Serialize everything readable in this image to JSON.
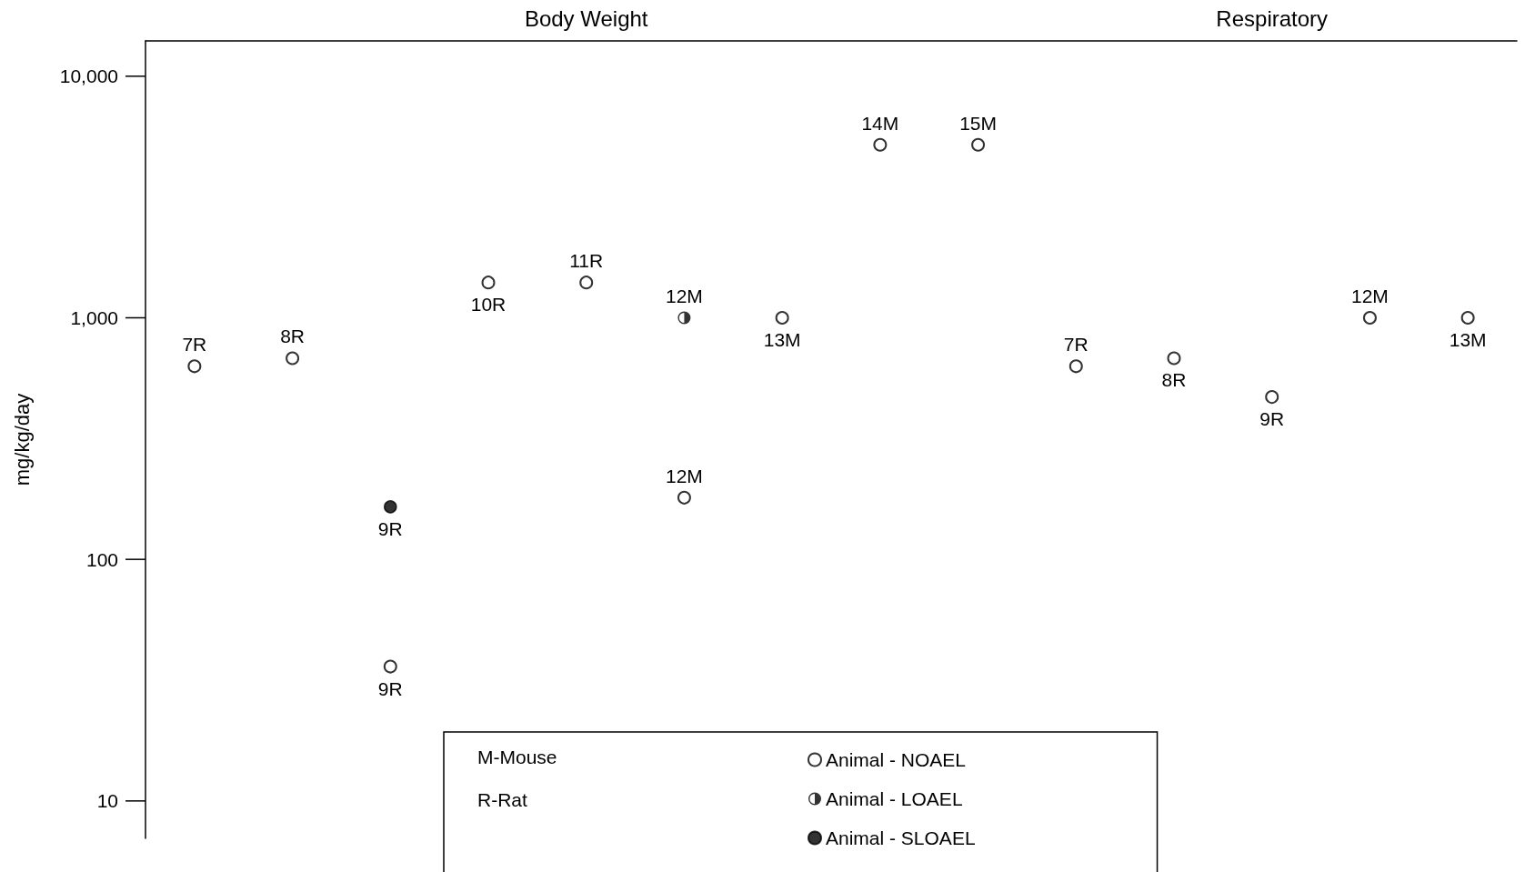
{
  "chart_data": {
    "type": "scatter",
    "ylabel": "mg/kg/day",
    "categories": [
      null,
      null,
      null,
      null,
      null,
      null,
      null,
      null,
      null,
      null,
      null,
      null,
      null,
      null
    ],
    "log": "y",
    "ylim": [
      7,
      14000
    ],
    "yticks": [
      10,
      100,
      {
        "value": 1000,
        "label": "1,000"
      },
      {
        "value": 10000,
        "label": "10,000"
      }
    ],
    "tick_labels": "y",
    "grid": false,
    "legend": "bottom",
    "marker": "circle",
    "annotations": [
      "Body Weight",
      "Respiratory",
      "M-Mouse",
      "R-Rat",
      {
        "text": "7R",
        "y": 630
      },
      {
        "text": "8R",
        "y": 680
      },
      {
        "text": "9R",
        "y": 36
      },
      {
        "text": "10R",
        "y": 1400
      },
      {
        "text": "11R",
        "y": 1400
      },
      {
        "text": "12M",
        "y": 180
      },
      {
        "text": "13M",
        "y": 1000
      },
      {
        "text": "14M",
        "y": 5200
      },
      {
        "text": "15M",
        "y": 5200
      },
      {
        "text": "7R",
        "y": 630
      },
      {
        "text": "8R",
        "y": 680
      },
      {
        "text": "9R",
        "y": 470
      },
      {
        "text": "12M",
        "y": 1000
      },
      {
        "text": "13M",
        "y": 1000
      },
      {
        "text": "12M",
        "y": 1000
      },
      {
        "text": "9R",
        "y": 165
      }
    ],
    "series": [
      {
        "name": "Animal - NOAEL",
        "color": "#000000",
        "values": [
          630,
          680,
          36,
          1400,
          1400,
          180,
          1000,
          5200,
          5200,
          630,
          680,
          470,
          1000,
          1000
        ]
      },
      {
        "name": "Animal - LOAEL",
        "color": "#000000",
        "values": [
          null,
          null,
          null,
          null,
          null,
          1000,
          null,
          null,
          null,
          null,
          null,
          null,
          null,
          null
        ]
      },
      {
        "name": "Animal - SLOAEL",
        "color": "#000000",
        "values": [
          null,
          null,
          165,
          null,
          null,
          null,
          null,
          null,
          null,
          null,
          null,
          null,
          null,
          null
        ]
      }
    ]
  }
}
